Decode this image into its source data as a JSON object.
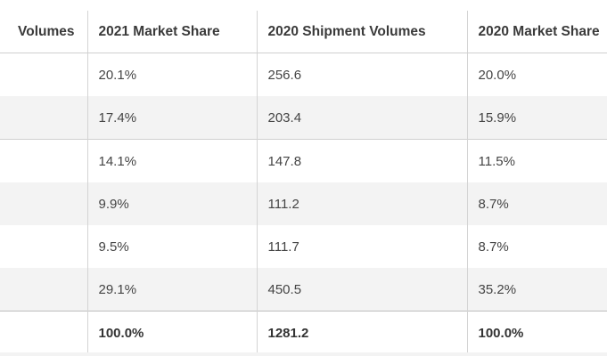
{
  "table": {
    "headers": [
      "Volumes",
      "2021 Market Share",
      "2020 Shipment Volumes",
      "2020 Market Share"
    ],
    "rows": [
      [
        "",
        "20.1%",
        "256.6",
        "20.0%"
      ],
      [
        "",
        "17.4%",
        "203.4",
        "15.9%"
      ],
      [
        "",
        "14.1%",
        "147.8",
        "11.5%"
      ],
      [
        "",
        "9.9%",
        "111.2",
        "8.7%"
      ],
      [
        "",
        "9.5%",
        "111.7",
        "8.7%"
      ],
      [
        "",
        "29.1%",
        "450.5",
        "35.2%"
      ]
    ],
    "total": [
      "",
      "100.0%",
      "1281.2",
      "100.0%"
    ]
  }
}
